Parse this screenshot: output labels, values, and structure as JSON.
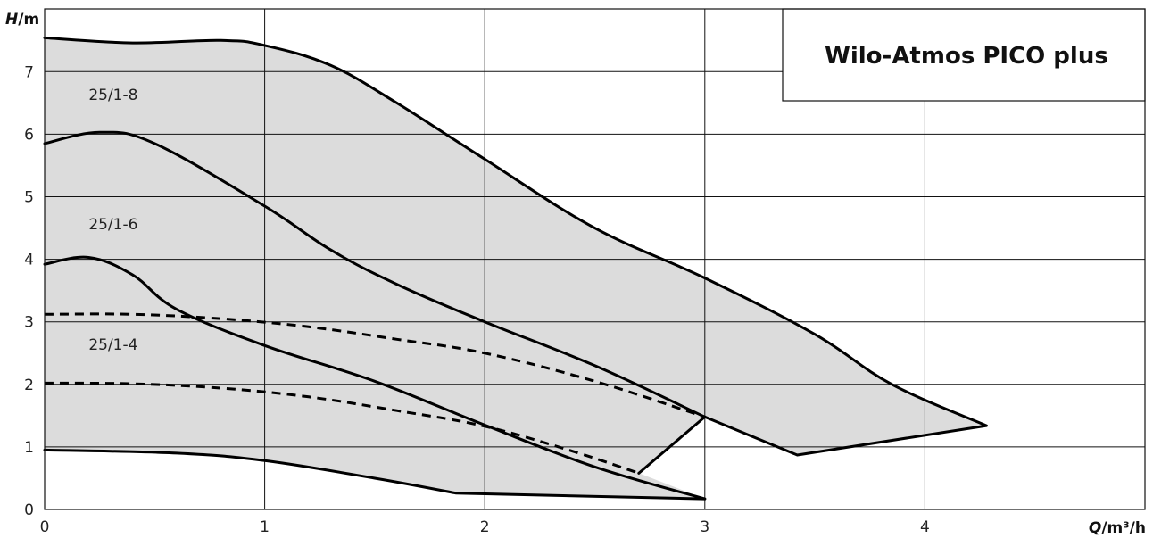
{
  "chart_data": {
    "type": "line",
    "title": "Wilo-Atmos PICO plus",
    "xlabel": "Q",
    "xunit": "/m³/h",
    "ylabel": "H",
    "yunit": "/m",
    "xlim": [
      0,
      5
    ],
    "ylim": [
      0,
      8
    ],
    "grid": true,
    "x_ticks": [
      "0",
      "1",
      "2",
      "3",
      "4"
    ],
    "y_ticks": [
      "0",
      "1",
      "2",
      "3",
      "4",
      "5",
      "6",
      "7"
    ],
    "envelope": {
      "fill": "#dcdcdc",
      "points": [
        [
          0,
          7.54
        ],
        [
          0.4,
          7.46
        ],
        [
          0.8,
          7.5
        ],
        [
          1.0,
          7.42
        ],
        [
          1.3,
          7.1
        ],
        [
          1.6,
          6.5
        ],
        [
          2.0,
          5.6
        ],
        [
          2.5,
          4.5
        ],
        [
          3.0,
          3.7
        ],
        [
          3.5,
          2.8
        ],
        [
          3.85,
          2.0
        ],
        [
          4.28,
          1.34
        ],
        [
          3.42,
          0.87
        ],
        [
          3.0,
          1.48
        ],
        [
          2.7,
          0.58
        ],
        [
          3.0,
          0.17
        ],
        [
          1.87,
          0.26
        ],
        [
          1.5,
          0.5
        ],
        [
          1.0,
          0.78
        ],
        [
          0.6,
          0.9
        ],
        [
          0,
          0.95
        ]
      ]
    },
    "series": [
      {
        "name": "25/1-8",
        "style": "solid",
        "points": [
          [
            0,
            7.54
          ],
          [
            0.4,
            7.46
          ],
          [
            0.8,
            7.5
          ],
          [
            1.0,
            7.42
          ],
          [
            1.3,
            7.1
          ],
          [
            1.6,
            6.5
          ],
          [
            2.0,
            5.6
          ],
          [
            2.5,
            4.5
          ],
          [
            3.0,
            3.7
          ],
          [
            3.5,
            2.8
          ],
          [
            3.85,
            2.0
          ],
          [
            4.28,
            1.34
          ],
          [
            3.42,
            0.87
          ],
          [
            3.0,
            1.48
          ]
        ]
      },
      {
        "name": "25/1-6",
        "style": "solid",
        "points": [
          [
            0,
            5.85
          ],
          [
            0.25,
            6.03
          ],
          [
            0.5,
            5.85
          ],
          [
            1.0,
            4.85
          ],
          [
            1.3,
            4.15
          ],
          [
            1.6,
            3.6
          ],
          [
            2.0,
            3.0
          ],
          [
            2.5,
            2.3
          ],
          [
            3.0,
            1.48
          ]
        ]
      },
      {
        "name": "25/1-4",
        "style": "solid",
        "points": [
          [
            0,
            3.92
          ],
          [
            0.2,
            4.03
          ],
          [
            0.4,
            3.75
          ],
          [
            0.6,
            3.2
          ],
          [
            1.0,
            2.62
          ],
          [
            1.5,
            2.05
          ],
          [
            2.0,
            1.35
          ],
          [
            2.5,
            0.68
          ],
          [
            3.0,
            0.17
          ]
        ]
      },
      {
        "name": "",
        "style": "dashed",
        "points": [
          [
            0,
            3.12
          ],
          [
            0.4,
            3.12
          ],
          [
            0.8,
            3.05
          ],
          [
            1.2,
            2.92
          ],
          [
            1.6,
            2.72
          ],
          [
            2.0,
            2.5
          ],
          [
            2.5,
            2.05
          ],
          [
            3.0,
            1.48
          ]
        ]
      },
      {
        "name": "",
        "style": "dashed",
        "points": [
          [
            0,
            2.02
          ],
          [
            0.4,
            2.01
          ],
          [
            0.8,
            1.94
          ],
          [
            1.2,
            1.8
          ],
          [
            1.6,
            1.58
          ],
          [
            2.0,
            1.33
          ],
          [
            2.4,
            0.93
          ],
          [
            2.7,
            0.58
          ]
        ]
      },
      {
        "name": "",
        "style": "solid",
        "points": [
          [
            0,
            0.95
          ],
          [
            0.6,
            0.9
          ],
          [
            1.0,
            0.78
          ],
          [
            1.5,
            0.5
          ],
          [
            1.87,
            0.26
          ],
          [
            3.0,
            0.17
          ]
        ]
      },
      {
        "name": "",
        "style": "solid",
        "points": [
          [
            2.7,
            0.58
          ],
          [
            3.0,
            1.48
          ]
        ]
      }
    ],
    "annotations": [
      {
        "text": "25/1-8",
        "x": 0.2,
        "y": 6.55
      },
      {
        "text": "25/1-6",
        "x": 0.2,
        "y": 4.48
      },
      {
        "text": "25/1-4",
        "x": 0.2,
        "y": 2.55
      }
    ]
  }
}
